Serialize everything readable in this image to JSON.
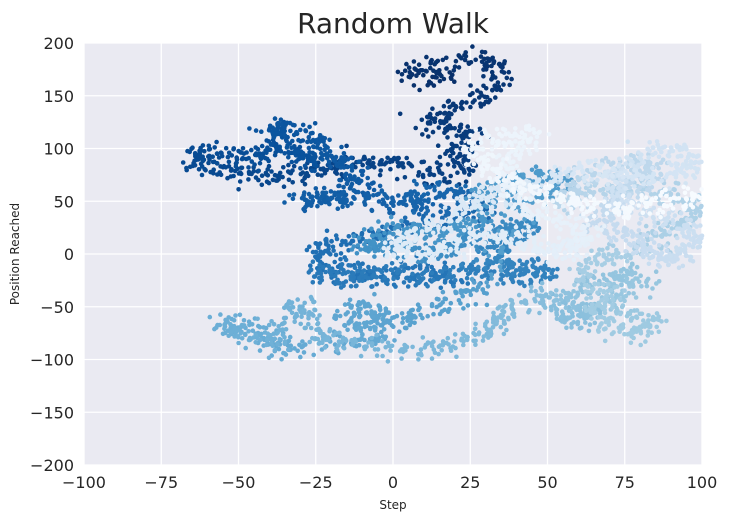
{
  "chart_data": {
    "type": "scatter",
    "title": "Random Walk",
    "xlabel": "Step",
    "ylabel": "Position Reached",
    "xlim": [
      -100,
      100
    ],
    "ylim": [
      -200,
      200
    ],
    "xticks": [
      -100,
      -75,
      -50,
      -25,
      0,
      25,
      50,
      75,
      100
    ],
    "yticks": [
      -200,
      -150,
      -100,
      -50,
      0,
      50,
      100,
      150,
      200
    ],
    "xtick_labels": [
      "−100",
      "−75",
      "−50",
      "−25",
      "0",
      "25",
      "50",
      "75",
      "100"
    ],
    "ytick_labels": [
      "−200",
      "−150",
      "−100",
      "−50",
      "0",
      "50",
      "100",
      "150",
      "200"
    ],
    "grid": true,
    "colormap": "Blues_r",
    "background_color": "#eaeaf2",
    "grid_color": "#ffffff",
    "colormap_stops": [
      "#08306b",
      "#08519c",
      "#2171b5",
      "#4292c6",
      "#6baed6",
      "#9ecae1",
      "#c6dbef",
      "#deebf7",
      "#f7fbff"
    ],
    "point_count": 5000,
    "series": [
      {
        "walk_path": [
          [
            20,
            165
          ],
          [
            5,
            170
          ],
          [
            15,
            180
          ],
          [
            30,
            185
          ],
          [
            35,
            170
          ],
          [
            30,
            150
          ],
          [
            20,
            140
          ],
          [
            10,
            125
          ],
          [
            20,
            120
          ],
          [
            25,
            110
          ],
          [
            20,
            95
          ],
          [
            25,
            80
          ],
          [
            10,
            75
          ],
          [
            0,
            85
          ],
          [
            -10,
            90
          ],
          [
            -20,
            80
          ],
          [
            -30,
            75
          ],
          [
            -40,
            70
          ],
          [
            -50,
            80
          ],
          [
            -60,
            85
          ],
          [
            -65,
            95
          ],
          [
            -55,
            95
          ],
          [
            -45,
            90
          ],
          [
            -40,
            100
          ],
          [
            -30,
            95
          ],
          [
            -25,
            85
          ],
          [
            -35,
            110
          ],
          [
            -40,
            120
          ],
          [
            -30,
            120
          ],
          [
            -25,
            105
          ],
          [
            -20,
            90
          ],
          [
            -15,
            80
          ],
          [
            -10,
            65
          ],
          [
            -20,
            55
          ],
          [
            -30,
            48
          ],
          [
            -20,
            50
          ],
          [
            -10,
            55
          ],
          [
            0,
            50
          ],
          [
            10,
            45
          ],
          [
            5,
            55
          ],
          [
            15,
            60
          ],
          [
            25,
            55
          ],
          [
            30,
            45
          ],
          [
            20,
            35
          ],
          [
            10,
            30
          ],
          [
            0,
            20
          ],
          [
            -10,
            15
          ],
          [
            -20,
            10
          ],
          [
            -25,
            0
          ],
          [
            -20,
            -15
          ],
          [
            -5,
            -20
          ],
          [
            10,
            -15
          ],
          [
            20,
            -25
          ],
          [
            5,
            -25
          ],
          [
            -10,
            -20
          ],
          [
            -25,
            -15
          ],
          [
            -15,
            -25
          ],
          [
            -5,
            -15
          ],
          [
            15,
            -20
          ],
          [
            25,
            -15
          ],
          [
            35,
            -20
          ],
          [
            45,
            -25
          ],
          [
            50,
            -15
          ],
          [
            40,
            -10
          ],
          [
            30,
            -5
          ],
          [
            35,
            10
          ],
          [
            40,
            20
          ],
          [
            45,
            30
          ],
          [
            35,
            25
          ],
          [
            25,
            15
          ],
          [
            20,
            5
          ],
          [
            10,
            0
          ],
          [
            0,
            10
          ],
          [
            -10,
            5
          ],
          [
            -5,
            20
          ],
          [
            5,
            25
          ],
          [
            15,
            20
          ],
          [
            25,
            30
          ],
          [
            30,
            45
          ],
          [
            30,
            60
          ],
          [
            40,
            70
          ],
          [
            50,
            75
          ],
          [
            55,
            65
          ],
          [
            45,
            55
          ],
          [
            40,
            45
          ],
          [
            30,
            -30
          ],
          [
            20,
            -40
          ],
          [
            10,
            -55
          ],
          [
            0,
            -65
          ],
          [
            -5,
            -60
          ],
          [
            -10,
            -50
          ],
          [
            -15,
            -60
          ],
          [
            -10,
            -70
          ],
          [
            -5,
            -80
          ],
          [
            -20,
            -85
          ],
          [
            -35,
            -90
          ],
          [
            -40,
            -80
          ],
          [
            -45,
            -70
          ],
          [
            -55,
            -65
          ],
          [
            -50,
            -75
          ],
          [
            -40,
            -85
          ],
          [
            -35,
            -60
          ],
          [
            -30,
            -45
          ],
          [
            -25,
            -70
          ],
          [
            -20,
            -85
          ],
          [
            -5,
            -85
          ],
          [
            10,
            -95
          ],
          [
            20,
            -85
          ],
          [
            30,
            -75
          ],
          [
            35,
            -60
          ],
          [
            40,
            -50
          ],
          [
            50,
            -40
          ],
          [
            55,
            -60
          ],
          [
            60,
            -65
          ],
          [
            65,
            -55
          ],
          [
            55,
            -45
          ],
          [
            60,
            -30
          ],
          [
            70,
            -25
          ],
          [
            75,
            -15
          ],
          [
            80,
            -25
          ],
          [
            70,
            -40
          ],
          [
            75,
            -55
          ],
          [
            85,
            -65
          ],
          [
            80,
            -75
          ],
          [
            70,
            -70
          ],
          [
            65,
            -55
          ],
          [
            70,
            -40
          ],
          [
            60,
            -20
          ],
          [
            65,
            -5
          ],
          [
            75,
            0
          ],
          [
            85,
            10
          ],
          [
            90,
            25
          ],
          [
            95,
            35
          ],
          [
            100,
            45
          ],
          [
            90,
            55
          ],
          [
            80,
            65
          ],
          [
            70,
            60
          ],
          [
            60,
            55
          ],
          [
            55,
            50
          ],
          [
            60,
            70
          ],
          [
            70,
            80
          ],
          [
            80,
            85
          ],
          [
            85,
            80
          ],
          [
            80,
            70
          ],
          [
            75,
            55
          ],
          [
            70,
            40
          ],
          [
            65,
            30
          ],
          [
            75,
            20
          ],
          [
            80,
            10
          ],
          [
            85,
            0
          ],
          [
            90,
            -5
          ],
          [
            95,
            5
          ],
          [
            100,
            15
          ],
          [
            95,
            25
          ],
          [
            85,
            35
          ],
          [
            75,
            50
          ],
          [
            70,
            65
          ],
          [
            75,
            85
          ],
          [
            85,
            100
          ],
          [
            95,
            95
          ],
          [
            100,
            85
          ],
          [
            90,
            75
          ],
          [
            80,
            70
          ],
          [
            70,
            75
          ],
          [
            60,
            80
          ],
          [
            50,
            70
          ],
          [
            40,
            60
          ],
          [
            30,
            55
          ],
          [
            25,
            45
          ],
          [
            15,
            30
          ],
          [
            5,
            15
          ],
          [
            0,
            5
          ],
          [
            10,
            0
          ],
          [
            20,
            10
          ],
          [
            30,
            20
          ],
          [
            40,
            15
          ],
          [
            50,
            5
          ],
          [
            55,
            0
          ],
          [
            60,
            10
          ],
          [
            65,
            20
          ],
          [
            55,
            30
          ],
          [
            45,
            40
          ],
          [
            40,
            55
          ],
          [
            35,
            75
          ],
          [
            40,
            95
          ],
          [
            45,
            110
          ],
          [
            35,
            115
          ],
          [
            25,
            100
          ],
          [
            30,
            85
          ],
          [
            35,
            70
          ],
          [
            45,
            60
          ],
          [
            55,
            55
          ],
          [
            60,
            45
          ],
          [
            70,
            40
          ],
          [
            80,
            45
          ],
          [
            90,
            50
          ],
          [
            100,
            55
          ]
        ]
      }
    ]
  }
}
